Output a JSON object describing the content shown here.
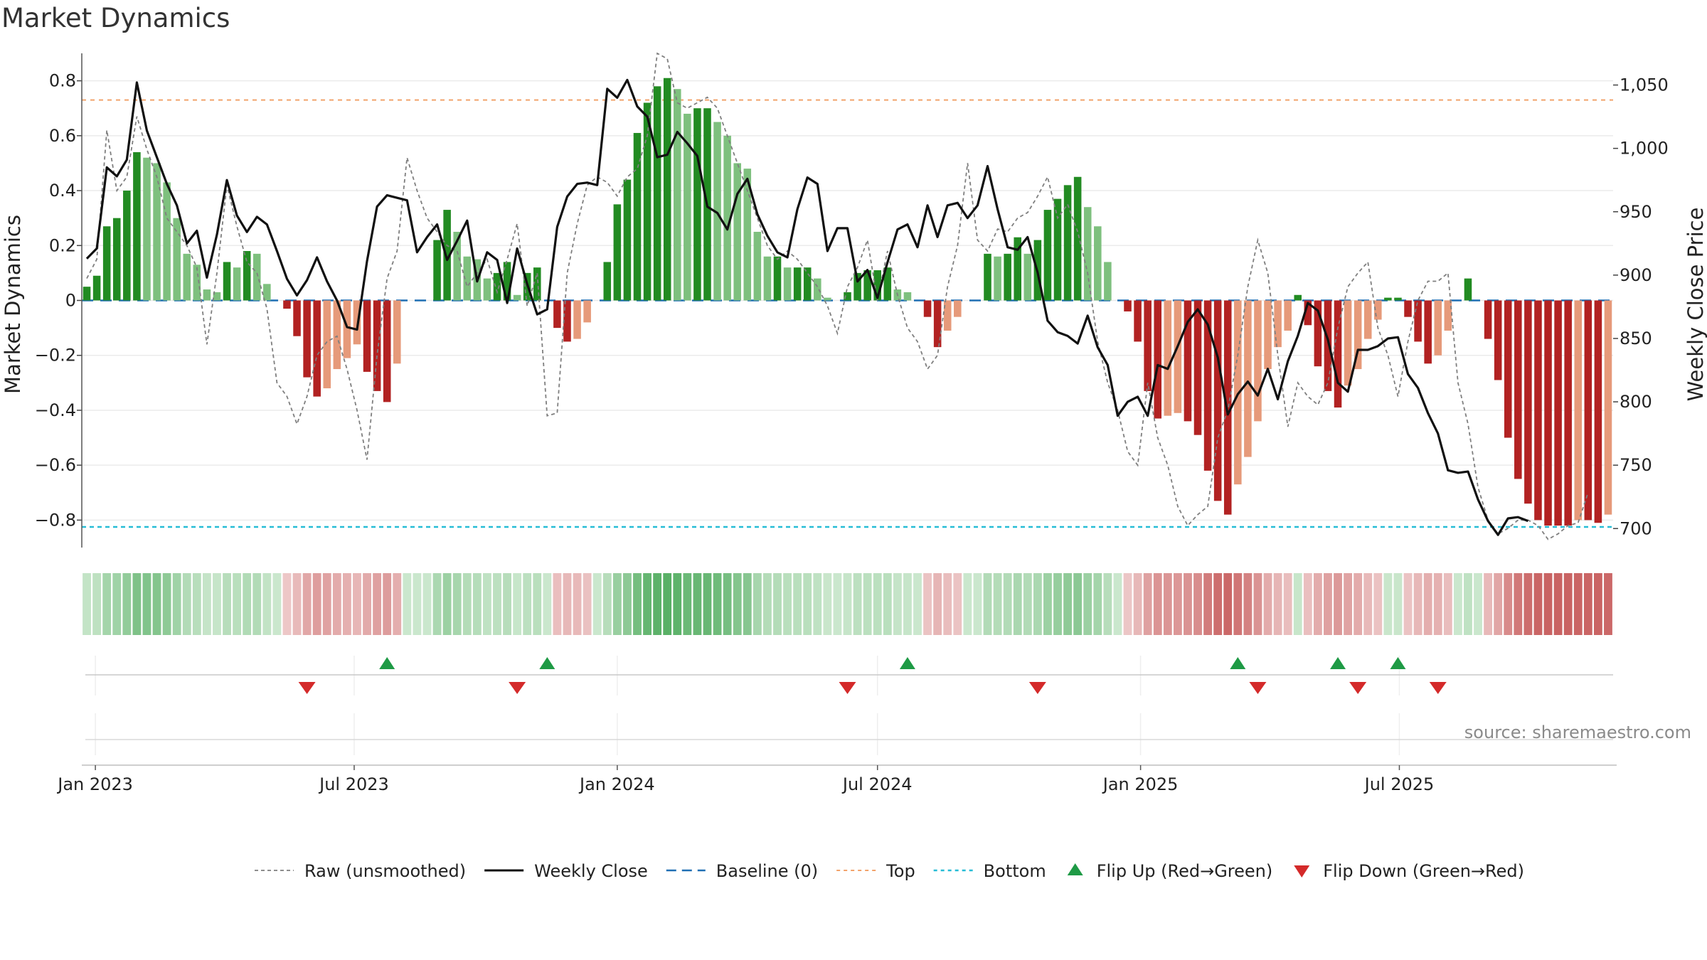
{
  "chart_data": {
    "type": "bar",
    "title": "Market Dynamics",
    "ylabel": "Market Dynamics",
    "ylabel_right": "Weekly Close Price",
    "ylim": [
      -0.9,
      0.9
    ],
    "ylim_right": [
      685,
      1075
    ],
    "yticks": [
      0.8,
      0.6,
      0.4,
      0.2,
      0,
      -0.2,
      -0.4,
      -0.6,
      -0.8
    ],
    "ytick_labels": [
      "0.8",
      "0.6",
      "0.4",
      "0.2",
      "0",
      "−0.2",
      "−0.4",
      "−0.6",
      "−0.8"
    ],
    "yticks_right": [
      1050,
      1000,
      950,
      900,
      850,
      800,
      750,
      700
    ],
    "ytick_labels_right": [
      "1,050",
      "1,000",
      "950",
      "900",
      "850",
      "800",
      "750",
      "700"
    ],
    "x_start": "2022-12-26",
    "x_ticks": [
      {
        "date": "2023-01-01",
        "label": "Jan 2023"
      },
      {
        "date": "2023-07-01",
        "label": "Jul 2023"
      },
      {
        "date": "2024-01-01",
        "label": "Jan 2024"
      },
      {
        "date": "2024-07-01",
        "label": "Jul 2024"
      },
      {
        "date": "2025-01-01",
        "label": "Jan 2025"
      },
      {
        "date": "2025-07-01",
        "label": "Jul 2025"
      }
    ],
    "top_level": 0.73,
    "bottom_level": -0.825,
    "grid": true,
    "legend_position": "bottom",
    "legend": [
      "Raw (unsmoothed)",
      "Weekly Close",
      "Baseline (0)",
      "Top",
      "Bottom",
      "Flip Up (Red→Green)",
      "Flip Down (Green→Red)"
    ],
    "series": [
      {
        "name": "Market Dynamics",
        "values": [
          0.05,
          0.09,
          0.27,
          0.3,
          0.4,
          0.54,
          0.52,
          0.5,
          0.43,
          0.3,
          0.17,
          0.13,
          0.04,
          0.03,
          0.14,
          0.12,
          0.18,
          0.17,
          0.06,
          0,
          -0.03,
          -0.13,
          -0.28,
          -0.35,
          -0.32,
          -0.25,
          -0.21,
          -0.16,
          -0.26,
          -0.33,
          -0.37,
          -0.23,
          0,
          0,
          0,
          0.22,
          0.33,
          0.25,
          0.16,
          0.15,
          0.08,
          0.1,
          0.14,
          0.02,
          0.1,
          0.12,
          0,
          -0.1,
          -0.15,
          -0.14,
          -0.08,
          0,
          0.14,
          0.35,
          0.44,
          0.61,
          0.72,
          0.78,
          0.81,
          0.77,
          0.68,
          0.7,
          0.7,
          0.65,
          0.6,
          0.5,
          0.48,
          0.25,
          0.16,
          0.16,
          0.12,
          0.12,
          0.12,
          0.08,
          0.01,
          0,
          0.03,
          0.1,
          0.11,
          0.11,
          0.12,
          0.04,
          0.03,
          0,
          -0.06,
          -0.17,
          -0.11,
          -0.06,
          0,
          0,
          0.17,
          0.16,
          0.17,
          0.23,
          0.17,
          0.22,
          0.33,
          0.37,
          0.42,
          0.45,
          0.34,
          0.27,
          0.14,
          0,
          -0.04,
          -0.15,
          -0.33,
          -0.43,
          -0.42,
          -0.41,
          -0.44,
          -0.49,
          -0.62,
          -0.73,
          -0.78,
          -0.67,
          -0.57,
          -0.44,
          -0.25,
          -0.17,
          -0.11,
          0.02,
          -0.09,
          -0.24,
          -0.33,
          -0.39,
          -0.31,
          -0.25,
          -0.14,
          -0.07,
          0.01,
          0.01,
          -0.06,
          -0.15,
          -0.23,
          -0.2,
          -0.11,
          0,
          0.08,
          0,
          -0.14,
          -0.29,
          -0.5,
          -0.65,
          -0.74,
          -0.8,
          -0.82,
          -0.82,
          -0.82,
          -0.8,
          -0.8,
          -0.81,
          -0.78
        ]
      },
      {
        "name": "Raw (unsmoothed)",
        "values": [
          0.08,
          0.15,
          0.62,
          0.4,
          0.45,
          0.67,
          0.55,
          0.45,
          0.3,
          0.25,
          0.2,
          0.12,
          -0.16,
          0.1,
          0.42,
          0.27,
          0.14,
          0.1,
          -0.03,
          -0.3,
          -0.35,
          -0.45,
          -0.35,
          -0.2,
          -0.15,
          -0.13,
          -0.25,
          -0.4,
          -0.58,
          -0.2,
          0.08,
          0.18,
          0.52,
          0.4,
          0.3,
          0.25,
          0.2,
          0.18,
          0.05,
          0.1,
          0.15,
          0.03,
          0.15,
          0.28,
          -0.02,
          0.1,
          -0.42,
          -0.41,
          0.1,
          0.28,
          0.42,
          0.45,
          0.43,
          0.38,
          0.45,
          0.48,
          0.6,
          0.9,
          0.88,
          0.72,
          0.7,
          0.72,
          0.74,
          0.7,
          0.6,
          0.5,
          0.4,
          0.3,
          0.2,
          0.15,
          0.18,
          0.15,
          0.1,
          0.05,
          -0.02,
          -0.12,
          0.05,
          0.12,
          0.22,
          0,
          0.18,
          0.02,
          -0.1,
          -0.15,
          -0.25,
          -0.2,
          0.05,
          0.2,
          0.5,
          0.22,
          0.18,
          0.26,
          0.25,
          0.3,
          0.32,
          0.38,
          0.45,
          0.3,
          0.35,
          0.25,
          0.1,
          -0.15,
          -0.3,
          -0.4,
          -0.55,
          -0.6,
          -0.3,
          -0.5,
          -0.6,
          -0.75,
          -0.82,
          -0.78,
          -0.75,
          -0.5,
          -0.4,
          -0.2,
          0.05,
          0.22,
          0.1,
          -0.2,
          -0.46,
          -0.3,
          -0.35,
          -0.38,
          -0.3,
          -0.1,
          0.05,
          0.1,
          0.14,
          -0.1,
          -0.2,
          -0.35,
          -0.15,
          0,
          0.07,
          0.07,
          0.1,
          -0.3,
          -0.45,
          -0.68,
          -0.8,
          -0.85,
          -0.83,
          -0.8,
          -0.8,
          -0.82,
          -0.87,
          -0.85,
          -0.82,
          -0.81,
          -0.7
        ]
      },
      {
        "name": "Weekly Close",
        "values": [
          913,
          921,
          985,
          978,
          991,
          1052,
          1014,
          993,
          972,
          955,
          925,
          935,
          898,
          932,
          975,
          947,
          934,
          946,
          940,
          919,
          897,
          884,
          896,
          914,
          895,
          880,
          859,
          857,
          911,
          954,
          963,
          961,
          959,
          918,
          930,
          940,
          912,
          927,
          943,
          895,
          918,
          912,
          878,
          921,
          893,
          869,
          873,
          938,
          962,
          972,
          973,
          971,
          1047,
          1040,
          1054,
          1033,
          1025,
          993,
          995,
          1013,
          1004,
          994,
          954,
          949,
          936,
          964,
          976,
          948,
          931,
          918,
          914,
          952,
          977,
          972,
          919,
          937,
          937,
          895,
          904,
          882,
          910,
          936,
          940,
          922,
          955,
          930,
          955,
          957,
          945,
          955,
          986,
          952,
          922,
          920,
          930,
          902,
          864,
          855,
          852,
          846,
          868,
          843,
          829,
          789,
          800,
          804,
          789,
          829,
          826,
          844,
          863,
          873,
          861,
          835,
          790,
          806,
          816,
          805,
          826,
          802,
          832,
          852,
          878,
          872,
          849,
          815,
          808,
          841,
          841,
          844,
          850,
          851,
          822,
          811,
          791,
          775,
          746,
          744,
          745,
          723,
          706,
          695,
          708,
          709,
          706
        ]
      }
    ],
    "flips_up": [
      "2023-07-24",
      "2023-11-13",
      "2024-07-22",
      "2025-03-10",
      "2025-05-19",
      "2025-06-30"
    ],
    "flips_down": [
      "2023-05-29",
      "2023-10-23",
      "2024-06-10",
      "2024-10-21",
      "2025-03-24",
      "2025-06-02",
      "2025-07-28"
    ]
  },
  "source": "source: sharemaestro.com",
  "colors": {
    "bull_strong": "#228b22",
    "bull_weak": "#7ec07e",
    "bear_strong": "#b22222",
    "bear_weak": "#e69a7a",
    "weekly_close": "#111111",
    "raw": "#7f7f7f",
    "baseline": "#1f6fb4",
    "top": "#f2a36b",
    "bottom": "#27bcd6",
    "flip_up": "#1e9a45",
    "flip_down": "#d42a2a"
  }
}
